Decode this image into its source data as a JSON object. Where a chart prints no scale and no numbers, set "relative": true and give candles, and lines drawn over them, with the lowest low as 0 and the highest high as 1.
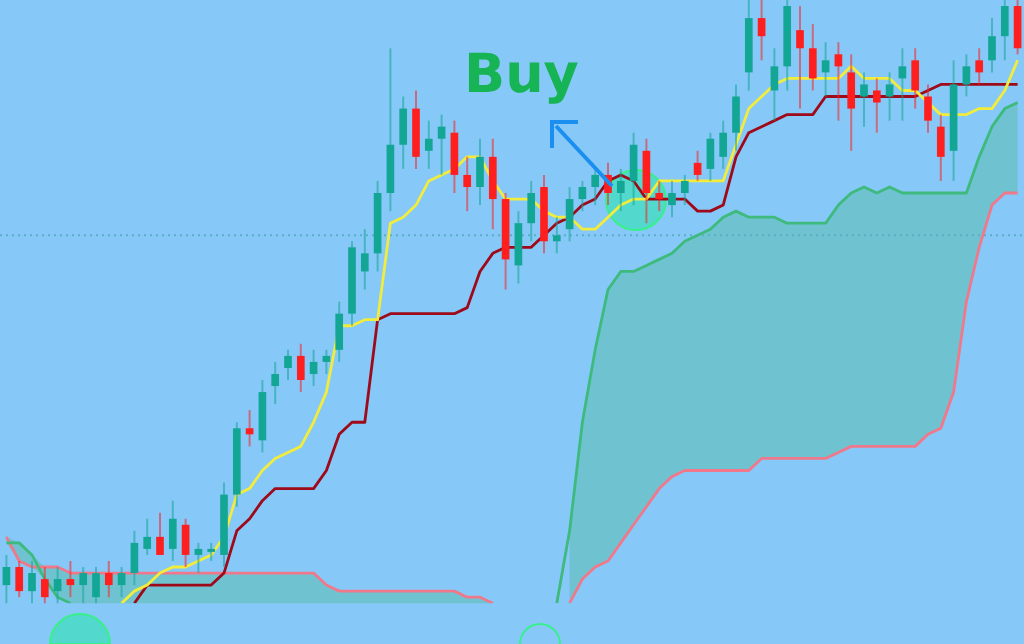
{
  "chart_data": {
    "type": "candlestick",
    "relative": true,
    "grid": false,
    "legend": false,
    "marker": "none",
    "annotations": [
      "Buy"
    ],
    "categories": [
      null,
      null,
      null,
      null,
      null,
      null,
      null,
      null,
      null,
      null,
      null,
      null,
      null,
      null,
      null,
      null,
      null,
      null,
      null,
      null,
      null,
      null,
      null,
      null,
      null,
      null,
      null,
      null,
      null,
      null,
      null,
      null,
      null,
      null,
      null,
      null,
      null,
      null,
      null,
      null,
      null,
      null,
      null,
      null,
      null,
      null,
      null,
      null,
      null,
      null,
      null,
      null,
      null,
      null,
      null,
      null,
      null,
      null,
      null,
      null,
      null,
      null,
      null,
      null,
      null,
      null,
      null,
      null,
      null,
      null,
      null,
      null,
      null,
      null,
      null,
      null,
      null,
      null,
      null,
      null
    ],
    "ohlc": [
      [
        0.03,
        0.08,
        0,
        0.06
      ],
      [
        0.06,
        0.07,
        0.01,
        0.02
      ],
      [
        0.02,
        0.07,
        0,
        0.05
      ],
      [
        0.04,
        0.06,
        0,
        0.01
      ],
      [
        0.02,
        0.06,
        0,
        0.04
      ],
      [
        0.04,
        0.07,
        0.01,
        0.03
      ],
      [
        0.03,
        0.06,
        0,
        0.05
      ],
      [
        0.01,
        0.06,
        0,
        0.05
      ],
      [
        0.05,
        0.07,
        0.01,
        0.03
      ],
      [
        0.03,
        0.06,
        0.01,
        0.05
      ],
      [
        0.05,
        0.12,
        0.03,
        0.1
      ],
      [
        0.09,
        0.14,
        0.08,
        0.11
      ],
      [
        0.11,
        0.15,
        0.08,
        0.08
      ],
      [
        0.09,
        0.17,
        0.07,
        0.14
      ],
      [
        0.13,
        0.14,
        0.06,
        0.08
      ],
      [
        0.08,
        0.1,
        0.05,
        0.09
      ],
      [
        0.09,
        0.1,
        0.07,
        0.09
      ],
      [
        0.08,
        0.2,
        0.06,
        0.18
      ],
      [
        0.18,
        0.3,
        0.16,
        0.29
      ],
      [
        0.29,
        0.32,
        0.26,
        0.28
      ],
      [
        0.27,
        0.37,
        0.25,
        0.35
      ],
      [
        0.36,
        0.4,
        0.33,
        0.38
      ],
      [
        0.39,
        0.42,
        0.37,
        0.41
      ],
      [
        0.41,
        0.43,
        0.35,
        0.37
      ],
      [
        0.38,
        0.42,
        0.36,
        0.4
      ],
      [
        0.4,
        0.42,
        0.38,
        0.41
      ],
      [
        0.42,
        0.5,
        0.4,
        0.48
      ],
      [
        0.48,
        0.6,
        0.46,
        0.59
      ],
      [
        0.55,
        0.62,
        0.52,
        0.58
      ],
      [
        0.58,
        0.7,
        0.55,
        0.68
      ],
      [
        0.68,
        0.92,
        0.65,
        0.76
      ],
      [
        0.76,
        0.84,
        0.72,
        0.82
      ],
      [
        0.82,
        0.85,
        0.72,
        0.74
      ],
      [
        0.75,
        0.8,
        0.72,
        0.77
      ],
      [
        0.77,
        0.81,
        0.71,
        0.79
      ],
      [
        0.78,
        0.8,
        0.68,
        0.71
      ],
      [
        0.71,
        0.74,
        0.65,
        0.69
      ],
      [
        0.69,
        0.77,
        0.66,
        0.74
      ],
      [
        0.74,
        0.77,
        0.62,
        0.67
      ],
      [
        0.67,
        0.68,
        0.52,
        0.57
      ],
      [
        0.56,
        0.65,
        0.53,
        0.63
      ],
      [
        0.63,
        0.7,
        0.6,
        0.68
      ],
      [
        0.69,
        0.71,
        0.58,
        0.6
      ],
      [
        0.6,
        0.64,
        0.58,
        0.61
      ],
      [
        0.62,
        0.69,
        0.6,
        0.67
      ],
      [
        0.67,
        0.7,
        0.65,
        0.69
      ],
      [
        0.69,
        0.72,
        0.66,
        0.71
      ],
      [
        0.71,
        0.73,
        0.66,
        0.68
      ],
      [
        0.68,
        0.72,
        0.65,
        0.7
      ],
      [
        0.7,
        0.78,
        0.66,
        0.76
      ],
      [
        0.75,
        0.77,
        0.63,
        0.68
      ],
      [
        0.68,
        0.7,
        0.65,
        0.67
      ],
      [
        0.66,
        0.7,
        0.64,
        0.68
      ],
      [
        0.68,
        0.71,
        0.66,
        0.7
      ],
      [
        0.73,
        0.75,
        0.7,
        0.71
      ],
      [
        0.72,
        0.78,
        0.7,
        0.77
      ],
      [
        0.74,
        0.8,
        0.72,
        0.78
      ],
      [
        0.78,
        0.86,
        0.75,
        0.84
      ],
      [
        0.88,
        1,
        0.85,
        0.97
      ],
      [
        0.97,
        1,
        0.9,
        0.94
      ],
      [
        0.85,
        0.92,
        0.8,
        0.89
      ],
      [
        0.89,
        1,
        0.85,
        0.99
      ],
      [
        0.95,
        0.99,
        0.82,
        0.92
      ],
      [
        0.92,
        0.96,
        0.85,
        0.87
      ],
      [
        0.88,
        0.93,
        0.84,
        0.9
      ],
      [
        0.91,
        0.93,
        0.8,
        0.89
      ],
      [
        0.88,
        0.91,
        0.75,
        0.82
      ],
      [
        0.84,
        0.88,
        0.79,
        0.86
      ],
      [
        0.85,
        0.87,
        0.78,
        0.83
      ],
      [
        0.84,
        0.88,
        0.8,
        0.86
      ],
      [
        0.87,
        0.92,
        0.8,
        0.89
      ],
      [
        0.9,
        0.92,
        0.82,
        0.85
      ],
      [
        0.84,
        0.86,
        0.78,
        0.8
      ],
      [
        0.79,
        0.81,
        0.7,
        0.74
      ],
      [
        0.75,
        0.9,
        0.7,
        0.86
      ],
      [
        0.86,
        0.91,
        0.84,
        0.89
      ],
      [
        0.9,
        0.92,
        0.86,
        0.88
      ],
      [
        0.9,
        0.97,
        0.88,
        0.94
      ],
      [
        0.94,
        1,
        0.9,
        0.99
      ],
      [
        0.99,
        1,
        0.91,
        0.92
      ]
    ],
    "colors": [
      "#13a695",
      "#ff1f1f",
      "#13a695",
      "#ff1f1f",
      "#13a695",
      "#ff1f1f",
      "#13a695",
      "#13a695",
      "#ff1f1f",
      "#13a695",
      "#13a695",
      "#13a695",
      "#ff1f1f",
      "#13a695",
      "#ff1f1f",
      "#13a695",
      "#13a695",
      "#13a695",
      "#13a695",
      "#ff1f1f",
      "#13a695",
      "#13a695",
      "#13a695",
      "#ff1f1f",
      "#13a695",
      "#13a695",
      "#13a695",
      "#13a695",
      "#13a695",
      "#13a695",
      "#13a695",
      "#13a695",
      "#ff1f1f",
      "#13a695",
      "#13a695",
      "#ff1f1f",
      "#ff1f1f",
      "#13a695",
      "#ff1f1f",
      "#ff1f1f",
      "#13a695",
      "#13a695",
      "#ff1f1f",
      "#13a695",
      "#13a695",
      "#13a695",
      "#13a695",
      "#ff1f1f",
      "#13a695",
      "#13a695",
      "#ff1f1f",
      "#ff1f1f",
      "#13a695",
      "#13a695",
      "#ff1f1f",
      "#13a695",
      "#13a695",
      "#13a695",
      "#13a695",
      "#ff1f1f",
      "#13a695",
      "#13a695",
      "#ff1f1f",
      "#ff1f1f",
      "#13a695",
      "#ff1f1f",
      "#ff1f1f",
      "#13a695",
      "#ff1f1f",
      "#13a695",
      "#13a695",
      "#ff1f1f",
      "#ff1f1f",
      "#ff1f1f",
      "#13a695",
      "#13a695",
      "#ff1f1f",
      "#13a695",
      "#13a695",
      "#ff1f1f"
    ],
    "series": [
      {
        "type": "line",
        "color": "#f2ec3c",
        "values": [
          null,
          null,
          null,
          null,
          null,
          null,
          null,
          null,
          null,
          0,
          0.02,
          0.03,
          0.05,
          0.06,
          0.06,
          0.07,
          0.08,
          0.11,
          0.18,
          0.19,
          0.22,
          0.24,
          0.25,
          0.26,
          0.3,
          0.35,
          0.46,
          0.46,
          0.47,
          0.47,
          0.63,
          0.64,
          0.66,
          0.7,
          0.71,
          0.72,
          0.74,
          0.74,
          0.7,
          0.67,
          0.67,
          0.67,
          0.65,
          0.64,
          0.64,
          0.62,
          0.62,
          0.64,
          0.66,
          0.67,
          0.67,
          0.7,
          0.7,
          0.7,
          0.7,
          0.7,
          0.7,
          0.76,
          0.82,
          0.84,
          0.86,
          0.87,
          0.87,
          0.87,
          0.87,
          0.87,
          0.89,
          0.87,
          0.87,
          0.87,
          0.85,
          0.85,
          0.83,
          0.81,
          0.81,
          0.81,
          0.82,
          0.82,
          0.85,
          0.9
        ]
      },
      {
        "type": "line",
        "color": "#9e0a1a",
        "values": [
          null,
          null,
          null,
          null,
          null,
          null,
          null,
          null,
          null,
          null,
          0,
          0.03,
          0.03,
          0.03,
          0.03,
          0.03,
          0.03,
          0.05,
          0.12,
          0.14,
          0.17,
          0.19,
          0.19,
          0.19,
          0.19,
          0.22,
          0.28,
          0.3,
          0.3,
          0.47,
          0.48,
          0.48,
          0.48,
          0.48,
          0.48,
          0.48,
          0.49,
          0.55,
          0.58,
          0.59,
          0.59,
          0.59,
          0.61,
          0.63,
          0.64,
          0.66,
          0.67,
          0.7,
          0.71,
          0.7,
          0.67,
          0.67,
          0.67,
          0.67,
          0.65,
          0.65,
          0.66,
          0.74,
          0.78,
          0.79,
          0.8,
          0.81,
          0.81,
          0.81,
          0.84,
          0.84,
          0.84,
          0.84,
          0.84,
          0.84,
          0.84,
          0.84,
          0.85,
          0.86,
          0.86,
          0.86,
          0.86,
          0.86,
          0.86,
          0.86
        ]
      },
      {
        "type": "line",
        "color": "#3dba7c",
        "values": [
          0.1,
          0.1,
          0.08,
          0.04,
          0.01,
          0,
          null,
          null,
          null,
          null,
          null,
          null,
          null,
          null,
          null,
          null,
          null,
          null,
          null,
          null,
          null,
          null,
          null,
          null,
          null,
          null,
          null,
          null,
          null,
          null,
          null,
          null,
          null,
          null,
          null,
          null,
          null,
          null,
          null,
          null,
          null,
          null,
          null,
          0,
          0.12,
          0.3,
          0.42,
          0.52,
          0.55,
          0.55,
          0.56,
          0.57,
          0.58,
          0.6,
          0.61,
          0.62,
          0.64,
          0.65,
          0.64,
          0.64,
          0.64,
          0.63,
          0.63,
          0.63,
          0.63,
          0.66,
          0.68,
          0.69,
          0.68,
          0.69,
          0.68,
          0.68,
          0.68,
          0.68,
          0.68,
          0.68,
          0.74,
          0.79,
          0.82,
          0.83
        ],
        "lower": [
          0.1,
          0.07,
          0.06,
          0.04,
          0.01,
          0,
          0,
          0,
          0,
          0,
          0,
          0,
          0,
          0,
          0,
          0,
          0,
          0,
          0,
          0,
          0,
          0,
          0,
          0,
          0,
          0,
          0,
          0,
          0,
          0,
          0,
          0,
          0,
          0,
          0,
          0,
          0,
          0,
          0,
          null,
          null,
          null,
          null,
          null,
          0,
          0.04,
          0.06,
          0.07,
          0.1,
          0.13,
          0.16,
          0.19,
          0.21,
          0.22,
          0.22,
          0.22,
          0.22,
          0.22,
          0.22,
          0.24,
          0.24,
          0.24,
          0.24,
          0.24,
          0.24,
          0.25,
          0.26,
          0.26,
          0.26,
          0.26,
          0.26,
          0.26,
          0.28,
          0.29,
          0.35,
          0.5,
          0.59,
          0.66,
          0.68,
          0.68
        ],
        "upper": [
          0.11,
          0.1,
          0.08,
          0.06,
          0.06,
          0.05,
          0.05,
          0.05,
          0.05,
          0.05,
          0.05,
          0.05,
          0.05,
          0.05,
          0.05,
          0.05,
          0.05,
          0.05,
          0.05,
          0.05,
          0.05,
          0.05,
          0.05,
          0.05,
          0.05,
          0.03,
          0.02,
          0.02,
          0.02,
          0.02,
          0.02,
          0.02,
          0.02,
          0.02,
          0.02,
          0.02,
          0.01,
          0.01,
          0,
          null,
          null,
          null,
          null,
          null,
          0.12,
          0.3,
          0.42,
          0.52,
          0.55,
          0.55,
          0.56,
          0.57,
          0.58,
          0.6,
          0.61,
          0.62,
          0.64,
          0.65,
          0.64,
          0.64,
          0.64,
          0.63,
          0.63,
          0.63,
          0.63,
          0.66,
          0.68,
          0.69,
          0.68,
          0.69,
          0.68,
          0.68,
          0.68,
          0.68,
          0.68,
          0.68,
          0.74,
          0.79,
          0.82,
          0.83
        ]
      },
      {
        "type": "line",
        "color": "#f0788a",
        "values": [
          0.11,
          0.07,
          0.06,
          0.06,
          0.06,
          0.05,
          0.05,
          0.05,
          0.05,
          0.05,
          0.05,
          0.05,
          0.05,
          0.05,
          0.05,
          0.05,
          0.05,
          0.05,
          0.05,
          0.05,
          0.05,
          0.05,
          0.05,
          0.05,
          0.05,
          0.03,
          0.02,
          0.02,
          0.02,
          0.02,
          0.02,
          0.02,
          0.02,
          0.02,
          0.02,
          0.02,
          0.01,
          0.01,
          0,
          null,
          null,
          null,
          null,
          null,
          0,
          0.04,
          0.06,
          0.07,
          0.1,
          0.13,
          0.16,
          0.19,
          0.21,
          0.22,
          0.22,
          0.22,
          0.22,
          0.22,
          0.22,
          0.24,
          0.24,
          0.24,
          0.24,
          0.24,
          0.24,
          0.25,
          0.26,
          0.26,
          0.26,
          0.26,
          0.26,
          0.26,
          0.28,
          0.29,
          0.35,
          0.5,
          0.59,
          0.66,
          0.68,
          0.68
        ]
      }
    ],
    "ref_lines": [
      {
        "axis": "y",
        "value": 0.61,
        "color": "#5aaec6",
        "line_style": "dotted"
      }
    ]
  }
}
